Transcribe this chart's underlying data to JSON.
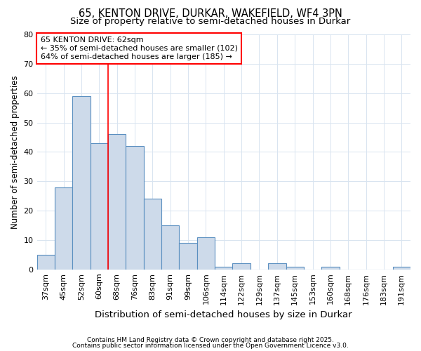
{
  "title1": "65, KENTON DRIVE, DURKAR, WAKEFIELD, WF4 3PN",
  "title2": "Size of property relative to semi-detached houses in Durkar",
  "xlabel": "Distribution of semi-detached houses by size in Durkar",
  "ylabel": "Number of semi-detached properties",
  "categories": [
    "37sqm",
    "45sqm",
    "52sqm",
    "60sqm",
    "68sqm",
    "76sqm",
    "83sqm",
    "91sqm",
    "99sqm",
    "106sqm",
    "114sqm",
    "122sqm",
    "129sqm",
    "137sqm",
    "145sqm",
    "153sqm",
    "160sqm",
    "168sqm",
    "176sqm",
    "183sqm",
    "191sqm"
  ],
  "values": [
    5,
    28,
    59,
    43,
    46,
    42,
    24,
    15,
    9,
    11,
    1,
    2,
    0,
    2,
    1,
    0,
    1,
    0,
    0,
    0,
    1
  ],
  "bar_color": "#cddaea",
  "bar_edge_color": "#5a8fc0",
  "red_line_x": 3.5,
  "annotation_line1": "65 KENTON DRIVE: 62sqm",
  "annotation_line2": "← 35% of semi-detached houses are smaller (102)",
  "annotation_line3": "64% of semi-detached houses are larger (185) →",
  "annotation_box_color": "white",
  "annotation_box_edge": "red",
  "ylim": [
    0,
    80
  ],
  "yticks": [
    0,
    10,
    20,
    30,
    40,
    50,
    60,
    70,
    80
  ],
  "footer1": "Contains HM Land Registry data © Crown copyright and database right 2025.",
  "footer2": "Contains public sector information licensed under the Open Government Licence v3.0.",
  "bg_color": "#ffffff",
  "grid_color": "#d8e4f0",
  "title1_fontsize": 10.5,
  "title2_fontsize": 9.5,
  "xlabel_fontsize": 9.5,
  "ylabel_fontsize": 8.5,
  "tick_fontsize": 8,
  "footer_fontsize": 6.5,
  "annot_fontsize": 8
}
